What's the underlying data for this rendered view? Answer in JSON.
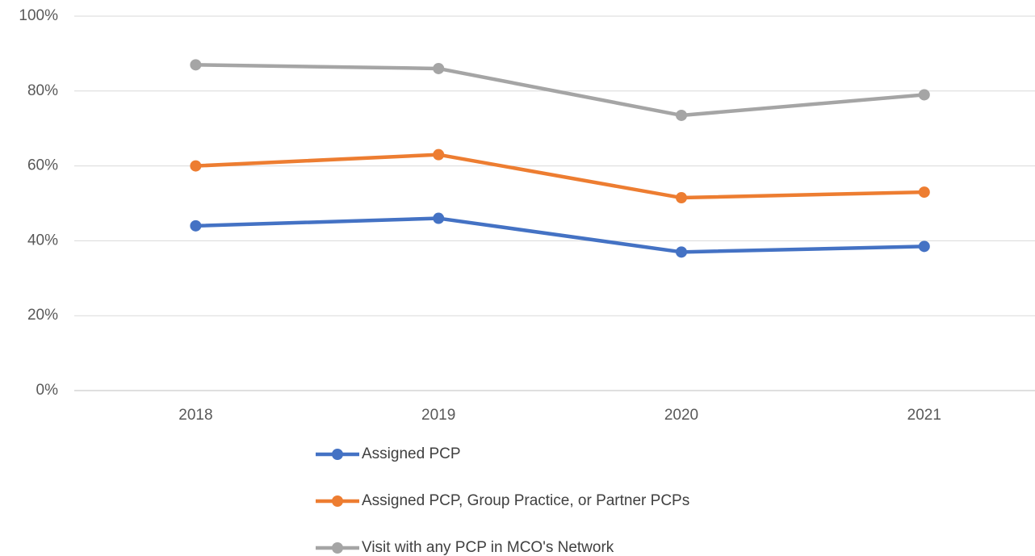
{
  "chart_data": {
    "type": "line",
    "categories": [
      "2018",
      "2019",
      "2020",
      "2021"
    ],
    "series": [
      {
        "name": "Assigned PCP",
        "color": "#4472c4",
        "values": [
          44,
          46,
          37,
          38.5
        ]
      },
      {
        "name": "Assigned PCP, Group Practice, or Partner PCPs",
        "color": "#ed7d31",
        "values": [
          60,
          63,
          51.5,
          53
        ]
      },
      {
        "name": "Visit with any PCP in MCO's Network",
        "color": "#a5a5a5",
        "values": [
          87,
          86,
          73.5,
          79
        ]
      }
    ],
    "ylim": [
      0,
      100
    ],
    "yticks": [
      {
        "value": 0,
        "label": "0%"
      },
      {
        "value": 20,
        "label": "20%"
      },
      {
        "value": 40,
        "label": "40%"
      },
      {
        "value": 60,
        "label": "60%"
      },
      {
        "value": 80,
        "label": "80%"
      },
      {
        "value": 100,
        "label": "100%"
      }
    ],
    "grid": true,
    "legend": "bottom"
  }
}
